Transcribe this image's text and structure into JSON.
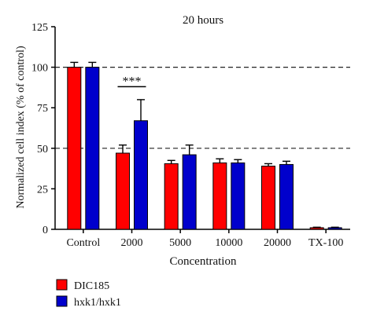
{
  "chart_data": {
    "type": "bar",
    "title": "20 hours",
    "xlabel": "Concentration",
    "ylabel": "Normalized cell index (% of control)",
    "categories": [
      "Control",
      "2000",
      "5000",
      "10000",
      "20000",
      "TX-100"
    ],
    "ylim": [
      0,
      125
    ],
    "yticks": [
      0,
      25,
      50,
      75,
      100,
      125
    ],
    "grid": false,
    "reference_lines": [
      50,
      100
    ],
    "legend_position": "bottom-left",
    "series": [
      {
        "name": "DIC185",
        "color": "#ff0000",
        "values": [
          100,
          47,
          40.5,
          41,
          39,
          1
        ],
        "errors": [
          3,
          5,
          2,
          2.5,
          1.5,
          0.3
        ]
      },
      {
        "name": "hxk1/hxk1",
        "color": "#0000cc",
        "values": [
          100,
          67,
          46,
          41,
          40,
          1
        ],
        "errors": [
          3,
          13,
          6,
          2,
          2,
          0.3
        ]
      }
    ],
    "annotations": [
      {
        "text": "***",
        "category_index": 1,
        "y": 88
      }
    ]
  }
}
